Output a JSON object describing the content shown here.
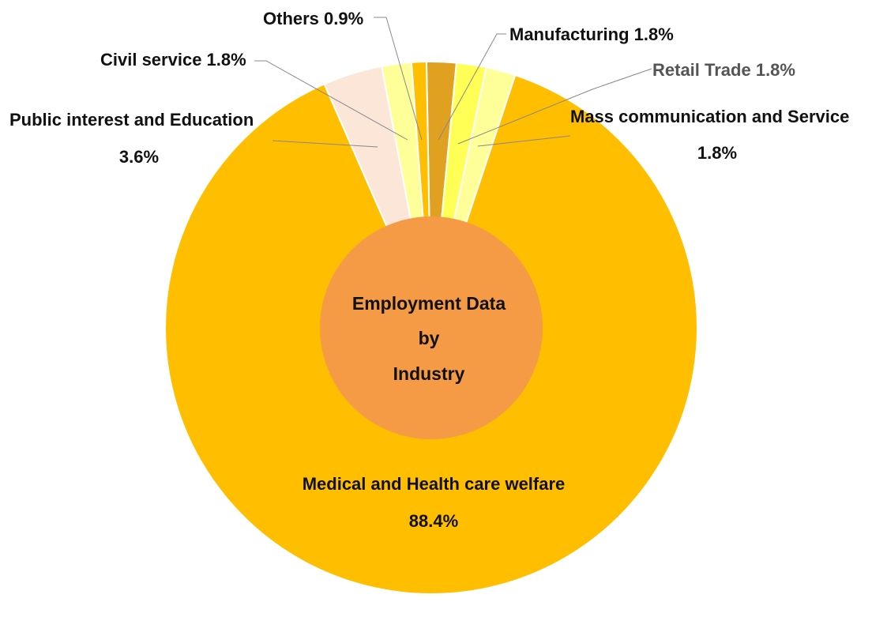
{
  "chart_data": {
    "type": "pie",
    "center_label": [
      "Employment Data",
      "by",
      "Industry"
    ],
    "slices": [
      {
        "name": "Manufacturing",
        "percent": "1.8%",
        "value": 1.8,
        "color": "#E0A020"
      },
      {
        "name": "Retail Trade",
        "percent": "1.8%",
        "value": 1.8,
        "color": "#FFFF55"
      },
      {
        "name": "Mass communication and Service",
        "percent": "1.8%",
        "value": 1.8,
        "color": "#FFFF99"
      },
      {
        "name": "Medical and Health care welfare",
        "percent": "88.4%",
        "value": 88.4,
        "color": "#FFBF00"
      },
      {
        "name": "Public interest and Education",
        "percent": "3.6%",
        "value": 3.6,
        "color": "#FCE6D8"
      },
      {
        "name": "Civil service",
        "percent": "1.8%",
        "value": 1.8,
        "color": "#FFFF99"
      },
      {
        "name": "Others",
        "percent": "0.9%",
        "value": 0.9,
        "color": "#FFBF00"
      }
    ],
    "labels": {
      "manufacturing": "Manufacturing 1.8%",
      "retail": "Retail Trade 1.8%",
      "mass_name": "Mass communication and Service",
      "mass_pct": "1.8%",
      "medical_name": "Medical and Health care welfare",
      "medical_pct": "88.4%",
      "public_name": "Public interest and Education",
      "public_pct": "3.6%",
      "civil": "Civil service 1.8%",
      "others": "Others 0.9%"
    },
    "hole_color": "#F59A45",
    "leader_color": "#888888"
  }
}
